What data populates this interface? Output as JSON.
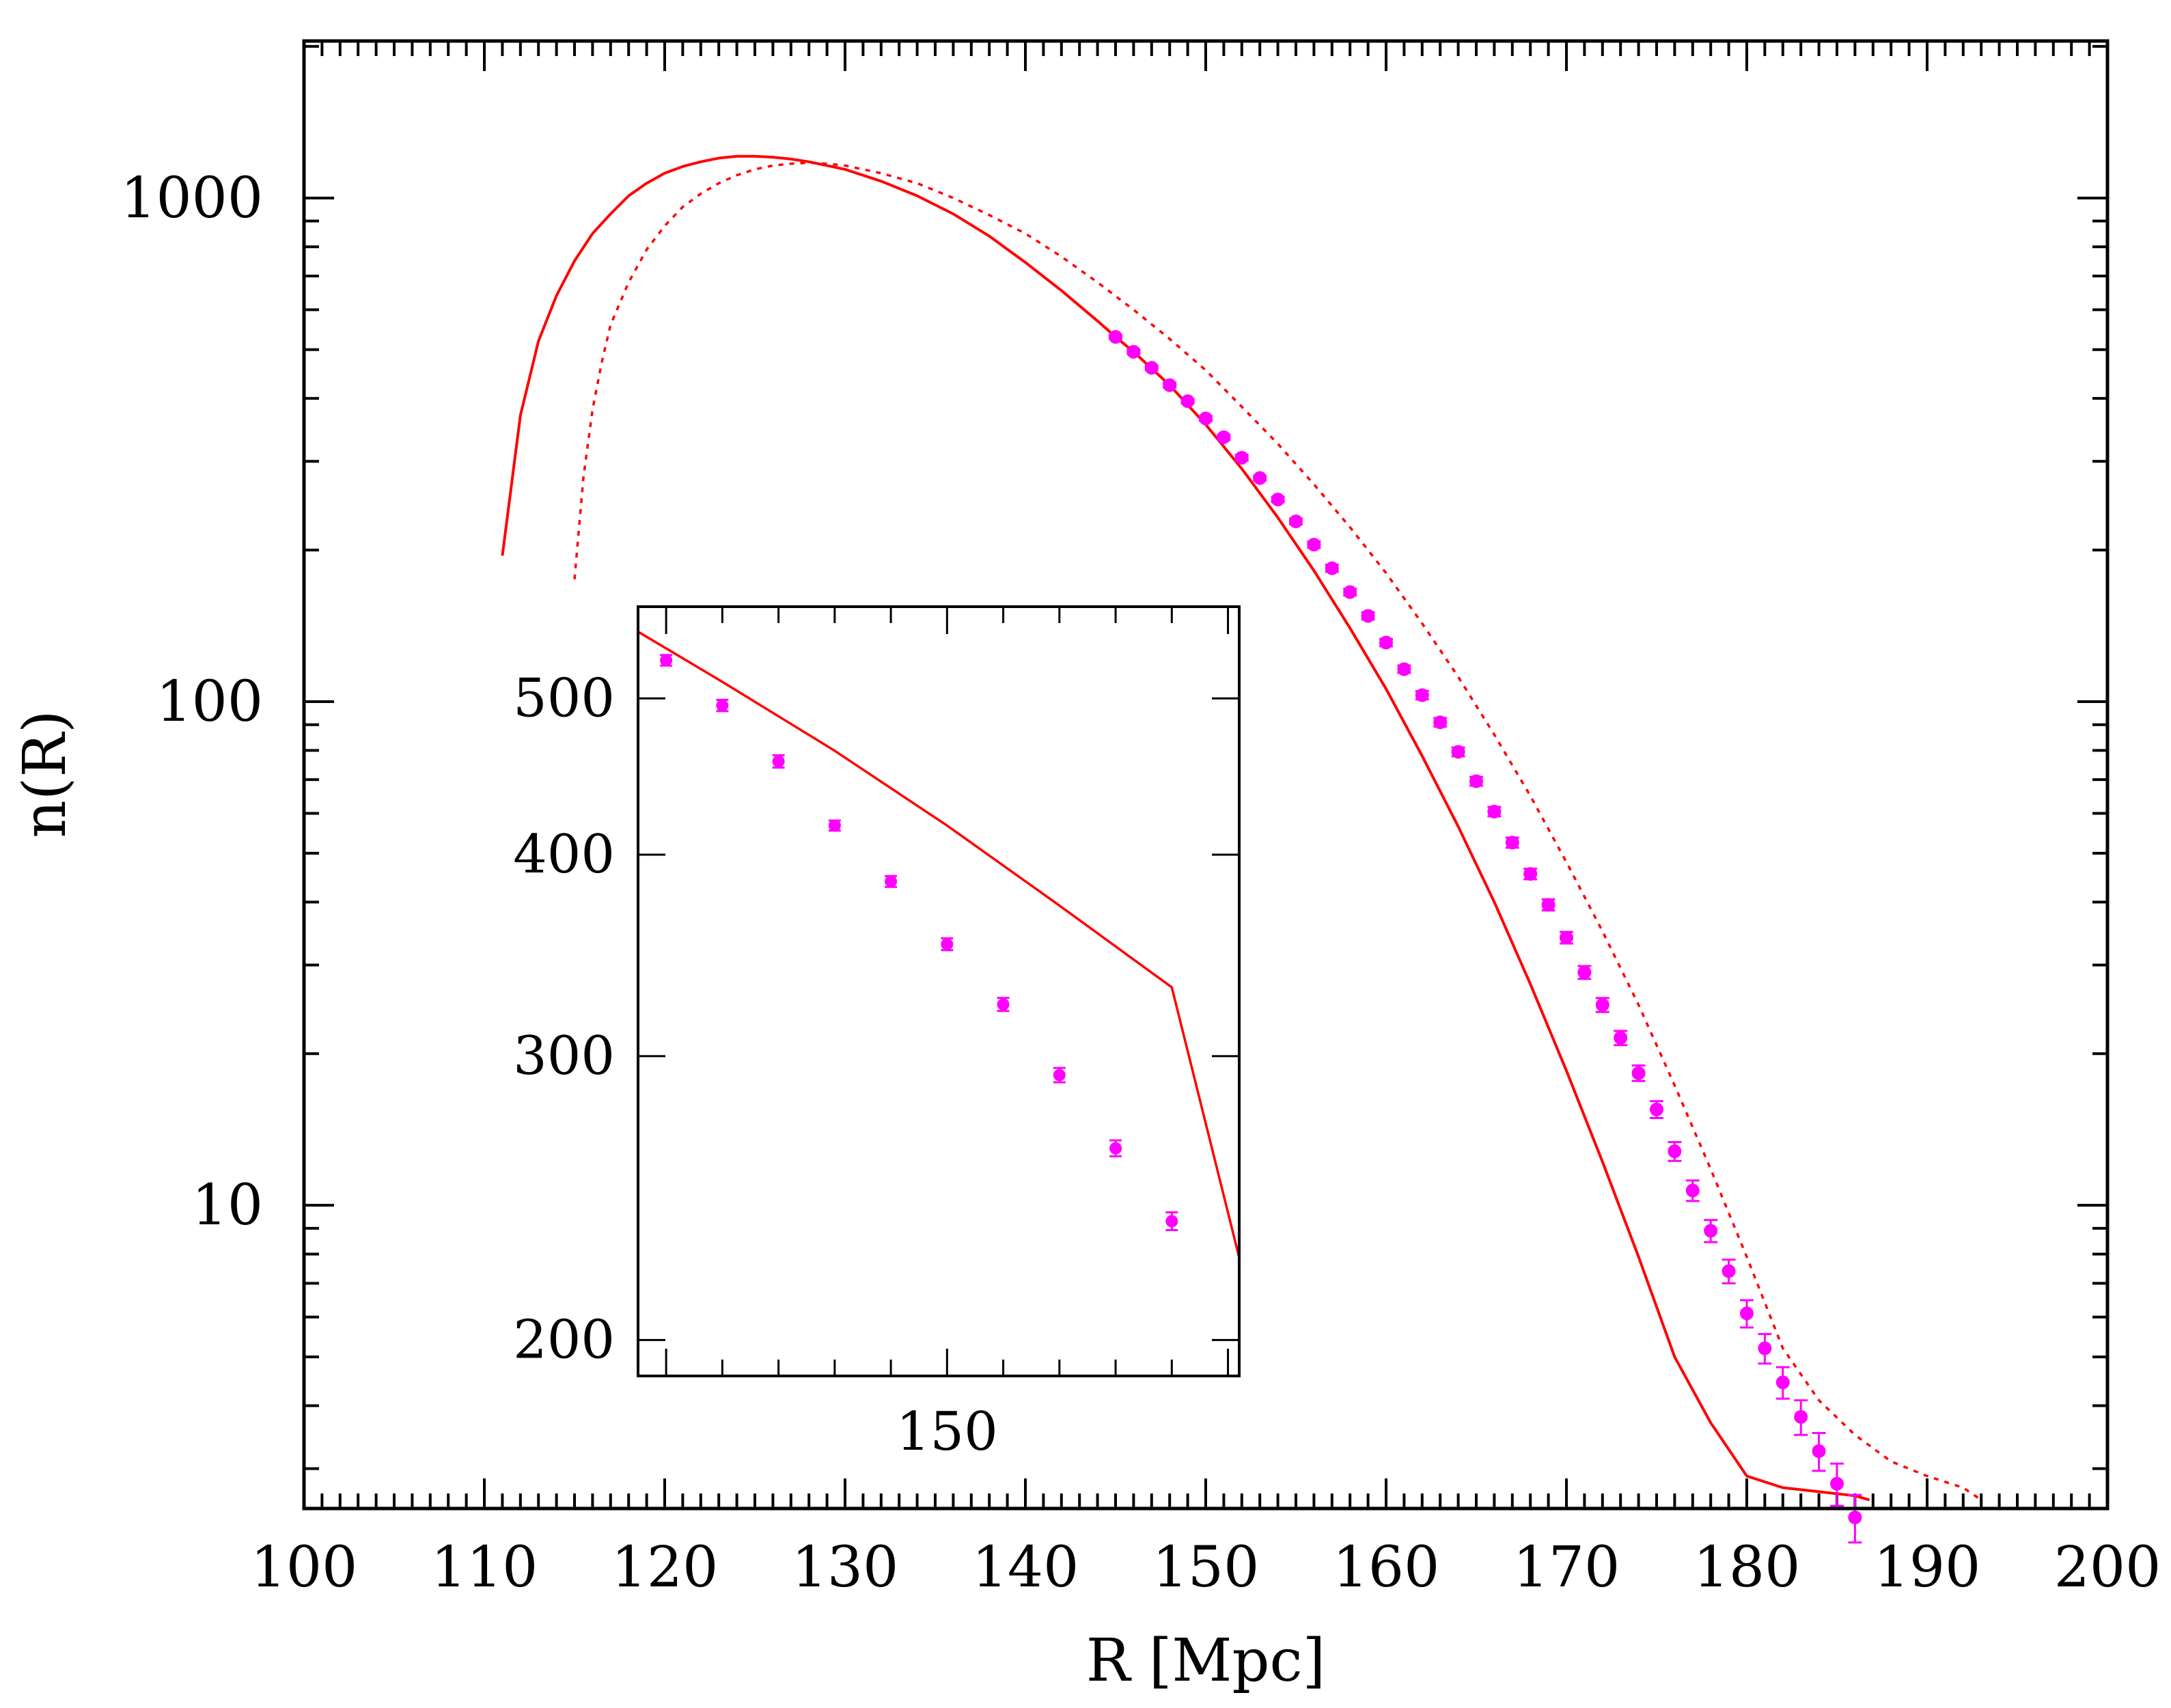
{
  "chart_data": [
    {
      "panel": "main",
      "type": "line",
      "xlabel": "R [Mpc]",
      "ylabel": "n(R)",
      "title": "",
      "xlim": [
        100,
        200
      ],
      "ylim": [
        2.5,
        2050
      ],
      "yscale": "log",
      "xticks": [
        "100",
        "110",
        "120",
        "130",
        "140",
        "150",
        "160",
        "170",
        "180",
        "190",
        "200"
      ],
      "yticks": [
        "10",
        "100",
        "1000"
      ],
      "grid": false,
      "legend": "none",
      "colors": {
        "model": "#ff0000",
        "points": "#ff00ff"
      },
      "series": [
        {
          "style": "solid",
          "x": [
            111,
            112,
            113,
            114,
            115,
            116,
            117,
            118,
            119,
            120,
            121,
            122,
            123,
            124,
            125,
            126,
            127,
            128,
            129,
            130,
            132,
            134,
            136,
            138,
            140,
            142,
            144,
            145,
            146,
            148,
            150,
            152,
            154,
            156,
            158,
            160,
            162,
            164,
            166,
            168,
            170,
            172,
            174,
            176,
            178,
            180,
            182,
            184,
            186,
            186.8
          ],
          "y": [
            195,
            370,
            520,
            640,
            750,
            850,
            930,
            1010,
            1070,
            1120,
            1155,
            1180,
            1200,
            1210,
            1210,
            1205,
            1195,
            1180,
            1160,
            1140,
            1080,
            1010,
            930,
            840,
            745,
            655,
            570,
            530,
            495,
            425,
            355,
            290,
            232,
            182,
            140,
            106,
            78,
            56.5,
            40,
            27.5,
            18.5,
            12.2,
            7.9,
            5.0,
            3.7,
            2.9,
            2.75,
            2.7,
            2.65,
            2.6
          ]
        },
        {
          "style": "dotted",
          "x": [
            115,
            115.5,
            116,
            116.5,
            117,
            118,
            119,
            120,
            121,
            122,
            123,
            124,
            125,
            126,
            127,
            128,
            129,
            130,
            132,
            134,
            136,
            138,
            140,
            142,
            144,
            146,
            148,
            150,
            152,
            154,
            156,
            158,
            160,
            162,
            164,
            166,
            168,
            170,
            172,
            174,
            176,
            178,
            180,
            182,
            184,
            186,
            188,
            190,
            192,
            193
          ],
          "y": [
            175,
            280,
            380,
            470,
            560,
            680,
            790,
            880,
            960,
            1020,
            1070,
            1110,
            1140,
            1160,
            1170,
            1175,
            1170,
            1160,
            1120,
            1070,
            1000,
            925,
            850,
            765,
            680,
            600,
            525,
            455,
            385,
            325,
            270,
            222,
            180,
            143,
            112,
            86,
            65,
            48,
            35,
            25,
            17.3,
            11.8,
            7.9,
            5.2,
            4.1,
            3.5,
            3.1,
            2.9,
            2.75,
            2.6
          ]
        },
        {
          "style": "points-errorbars",
          "x": [
            145,
            146,
            147,
            148,
            149,
            150,
            151,
            152,
            153,
            154,
            155,
            156,
            157,
            158,
            159,
            160,
            161,
            162,
            163,
            164,
            165,
            166,
            167,
            168,
            169,
            170,
            171,
            172,
            173,
            174,
            175,
            176,
            177,
            178,
            179,
            180,
            181,
            182,
            183,
            184,
            185,
            186
          ],
          "y": [
            530,
            495,
            460,
            425,
            395,
            365,
            335,
            305,
            278,
            252,
            228,
            205,
            184,
            165,
            148,
            131,
            116,
            103,
            91,
            79.5,
            69.5,
            60.5,
            52.5,
            45.5,
            39.5,
            34,
            29,
            25,
            21.5,
            18.3,
            15.5,
            12.8,
            10.7,
            8.9,
            7.4,
            6.1,
            5.2,
            4.45,
            3.8,
            3.25,
            2.8,
            2.4
          ],
          "err": [
            5,
            5,
            5,
            5,
            4,
            4,
            4,
            4,
            3,
            3,
            3,
            3,
            3,
            2.5,
            2.5,
            2.2,
            2,
            2,
            1.8,
            1.6,
            1.4,
            1.3,
            1.2,
            1.1,
            1.0,
            0.9,
            0.85,
            0.8,
            0.7,
            0.65,
            0.6,
            0.55,
            0.5,
            0.45,
            0.4,
            0.38,
            0.35,
            0.32,
            0.3,
            0.28,
            0.27,
            0.26
          ]
        }
      ]
    },
    {
      "panel": "inset",
      "type": "line",
      "xlabel": "",
      "ylabel": "",
      "xlim": [
        144.5,
        155.2
      ],
      "ylim": [
        190,
        570
      ],
      "yscale": "log",
      "xticks": [
        "150"
      ],
      "yticks": [
        "200",
        "300",
        "400",
        "500"
      ],
      "grid": false,
      "legend": "none",
      "series": [
        {
          "style": "solid",
          "x": [
            144.5,
            146,
            148,
            150,
            152,
            154,
            155.2
          ],
          "y": [
            550,
            512,
            464,
            417,
            372,
            331,
            225
          ]
        },
        {
          "style": "points-errorbars",
          "x": [
            145,
            146,
            147,
            148,
            149,
            150,
            151,
            152,
            153,
            154
          ],
          "y": [
            528,
            495,
            457,
            417,
            385,
            352,
            323,
            292,
            263,
            237
          ],
          "err": [
            4,
            4,
            4,
            3,
            3,
            3,
            3,
            3,
            3,
            3
          ]
        }
      ]
    }
  ]
}
